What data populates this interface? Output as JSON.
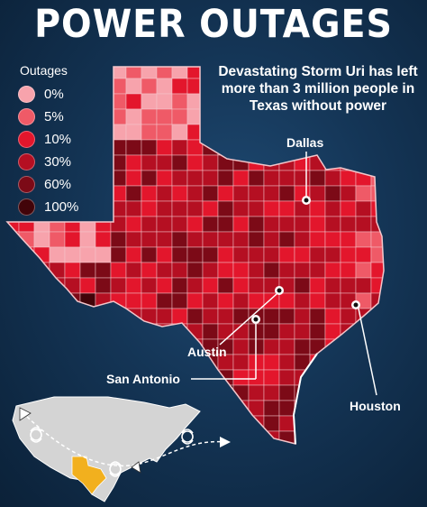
{
  "title": "POWER OUTAGES",
  "subtitle": "Devastating Storm Uri has left more than 3 million people in Texas without power",
  "legend": {
    "title": "Outages",
    "items": [
      {
        "label": "0%",
        "color": "#f7a3ac"
      },
      {
        "label": "5%",
        "color": "#ef5a67"
      },
      {
        "label": "10%",
        "color": "#e3162c"
      },
      {
        "label": "30%",
        "color": "#b50f22"
      },
      {
        "label": "60%",
        "color": "#7c0a17"
      },
      {
        "label": "100%",
        "color": "#420409"
      }
    ]
  },
  "cities": {
    "dallas": "Dallas",
    "austin": "Austin",
    "san_antonio": "San Antonio",
    "houston": "Houston"
  },
  "colors": {
    "background": "#143556",
    "county_border": "#f3c6cb",
    "inset_land": "#d4d4d4",
    "inset_texas": "#f2b01e"
  }
}
